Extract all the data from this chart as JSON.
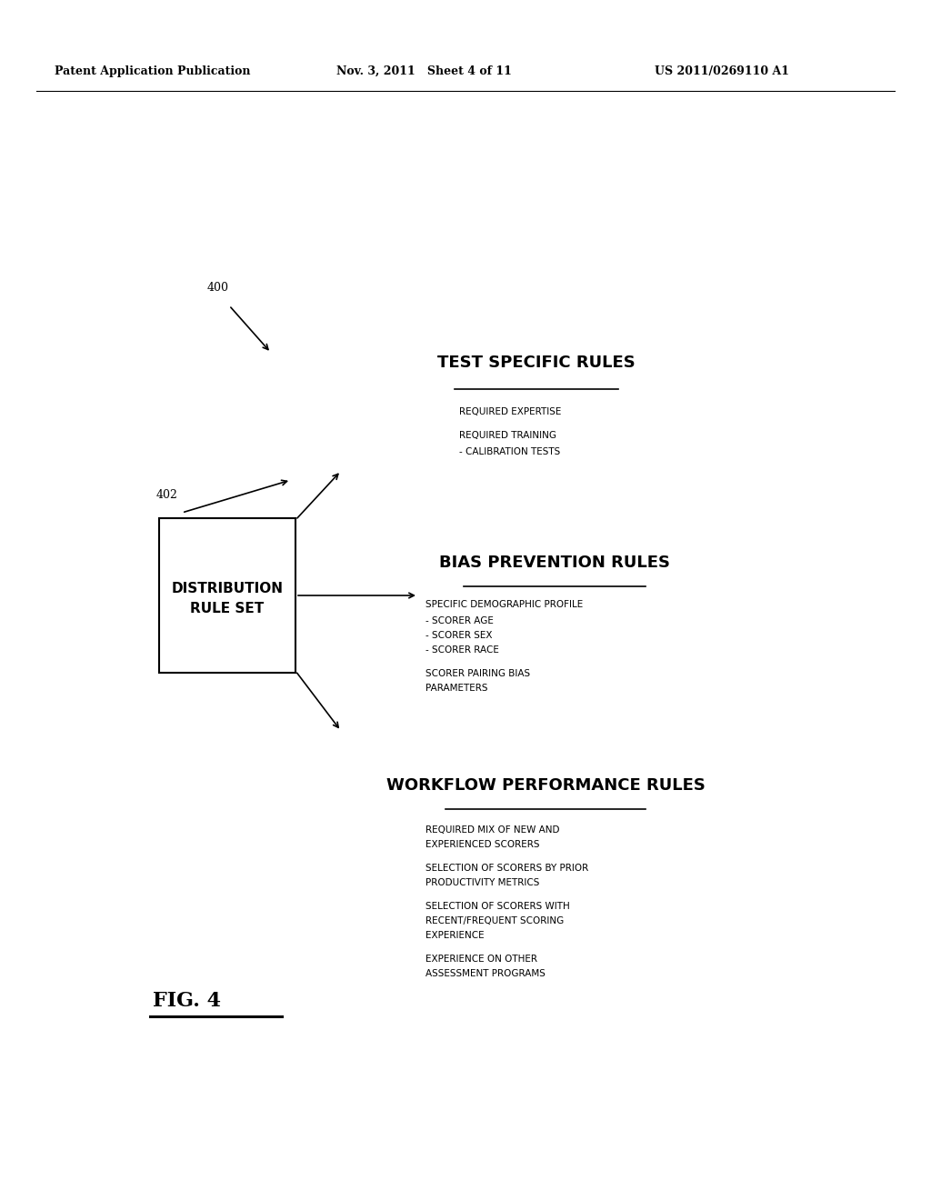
{
  "bg_color": "#ffffff",
  "header_left": "Patent Application Publication",
  "header_mid": "Nov. 3, 2011   Sheet 4 of 11",
  "header_right": "US 2011/0269110 A1",
  "label_400": "400",
  "label_402": "402",
  "box_label_line1": "DISTRIBUTION",
  "box_label_line2": "RULE SET",
  "section1_title": "TEST SPECIFIC RULES",
  "section2_title": "BIAS PREVENTION RULES",
  "section3_title": "WORKFLOW PERFORMANCE RULES",
  "fig_label": "FIG. 4"
}
